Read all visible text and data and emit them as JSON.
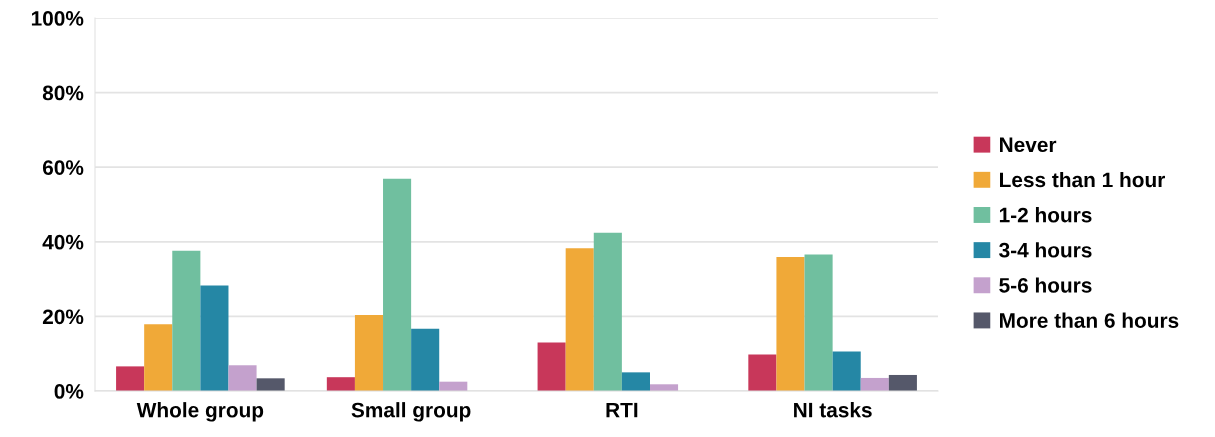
{
  "chart_data": {
    "type": "bar",
    "categories": [
      "Whole group",
      "Small group",
      "RTI",
      "NI tasks"
    ],
    "series": [
      {
        "name": "Never",
        "color": "#c8375a",
        "values": [
          6.6,
          3.7,
          13.0,
          9.8
        ]
      },
      {
        "name": "Less than 1 hour",
        "color": "#f0a938",
        "values": [
          17.9,
          20.4,
          38.3,
          35.9
        ]
      },
      {
        "name": "1-2 hours",
        "color": "#70bf9f",
        "values": [
          37.6,
          56.9,
          42.4,
          36.6
        ]
      },
      {
        "name": "3-4 hours",
        "color": "#2587a5",
        "values": [
          28.3,
          16.7,
          5.0,
          10.6
        ]
      },
      {
        "name": "5-6 hours",
        "color": "#c4a1cd",
        "values": [
          6.9,
          2.5,
          1.8,
          3.5
        ]
      },
      {
        "name": "More than 6 hours",
        "color": "#55586a",
        "values": [
          3.4,
          null,
          null,
          4.3
        ]
      }
    ],
    "ylim": [
      0,
      100
    ],
    "yticks": [
      {
        "value": 0,
        "label": "0%"
      },
      {
        "value": 20,
        "label": "20%"
      },
      {
        "value": 40,
        "label": "40%"
      },
      {
        "value": 60,
        "label": "60%"
      },
      {
        "value": 80,
        "label": "80%"
      },
      {
        "value": 100,
        "label": "100%"
      }
    ],
    "grid": "y",
    "legend": "right"
  }
}
